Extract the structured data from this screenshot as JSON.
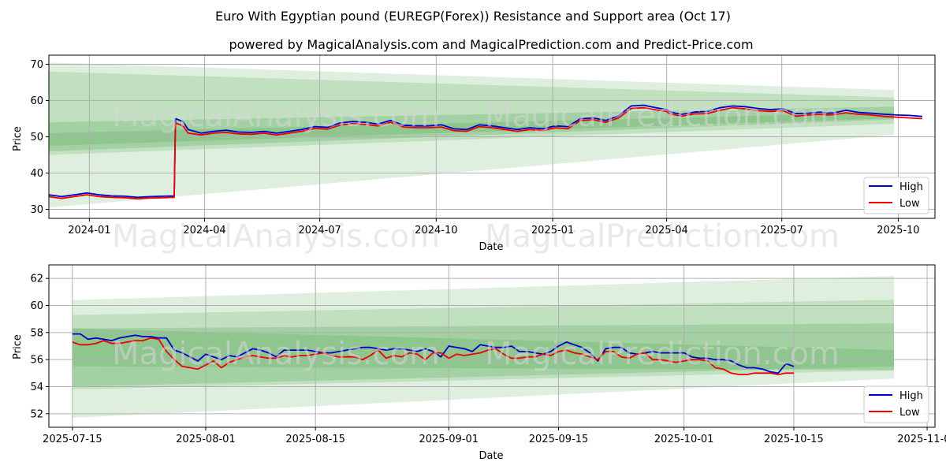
{
  "figure": {
    "title": "Euro With Egyptian pound (EUREGP(Forex)) Resistance and Support area (Oct 17)",
    "subtitle": "powered by MagicalAnalysis.com and MagicalPrediction.com and Predict-Price.com",
    "watermarks": [
      "MagicalAnalysis.com",
      "MagicalPrediction.com"
    ]
  },
  "chart_data": [
    {
      "type": "line",
      "xlabel": "Date",
      "ylabel": "Price",
      "xlim": [
        0,
        700
      ],
      "ylim": [
        27.5,
        72.5
      ],
      "x_unit": "days since 2023-11-30",
      "x_ticks": [
        {
          "v": 32,
          "label": "2024-01"
        },
        {
          "v": 123,
          "label": "2024-04"
        },
        {
          "v": 214,
          "label": "2024-07"
        },
        {
          "v": 306,
          "label": "2024-10"
        },
        {
          "v": 398,
          "label": "2025-01"
        },
        {
          "v": 488,
          "label": "2025-04"
        },
        {
          "v": 579,
          "label": "2025-07"
        },
        {
          "v": 671,
          "label": "2025-10"
        }
      ],
      "y_ticks": [
        30,
        40,
        50,
        60,
        70
      ],
      "grid": true,
      "legend": {
        "position": "lower-right",
        "entries": [
          "High",
          "Low"
        ]
      },
      "bands": [
        {
          "x": [
            0,
            700
          ],
          "upper": [
            70.5,
            62.5
          ],
          "lower": [
            30.5,
            51.5
          ],
          "opacity": 0.16
        },
        {
          "x": [
            0,
            700
          ],
          "upper": [
            68.0,
            60.5
          ],
          "lower": [
            45.0,
            54.0
          ],
          "opacity": 0.18
        },
        {
          "x": [
            0,
            700
          ],
          "upper": [
            54.0,
            58.5
          ],
          "lower": [
            46.0,
            55.2
          ],
          "opacity": 0.22
        },
        {
          "x": [
            0,
            700
          ],
          "upper": [
            51.0,
            57.0
          ],
          "lower": [
            47.5,
            55.5
          ],
          "opacity": 0.2
        }
      ],
      "series": [
        {
          "name": "High",
          "color": "#0000cc",
          "x": [
            0,
            10,
            20,
            30,
            40,
            50,
            60,
            70,
            80,
            90,
            99,
            100,
            106,
            110,
            120,
            130,
            140,
            150,
            160,
            170,
            180,
            190,
            200,
            210,
            220,
            230,
            240,
            250,
            260,
            270,
            280,
            290,
            300,
            310,
            320,
            330,
            340,
            350,
            360,
            370,
            380,
            390,
            400,
            410,
            420,
            430,
            440,
            450,
            460,
            470,
            480,
            488,
            490,
            495,
            500,
            505,
            510,
            520,
            530,
            540,
            550,
            560,
            570,
            575,
            580,
            590,
            600,
            610,
            615,
            620,
            630,
            640,
            650,
            660,
            670,
            680,
            690
          ],
          "values": [
            34.0,
            33.5,
            34.0,
            34.5,
            34.0,
            33.7,
            33.6,
            33.3,
            33.5,
            33.6,
            33.7,
            55.0,
            54.2,
            52.0,
            51.0,
            51.5,
            51.8,
            51.3,
            51.2,
            51.5,
            51.0,
            51.5,
            52.0,
            52.8,
            52.6,
            53.8,
            54.2,
            54.0,
            53.5,
            54.5,
            53.2,
            53.0,
            53.0,
            53.3,
            52.2,
            52.0,
            53.3,
            53.0,
            52.5,
            52.0,
            52.5,
            52.2,
            53.0,
            52.8,
            55.0,
            55.2,
            54.5,
            55.8,
            58.5,
            58.7,
            58.0,
            57.5,
            57.0,
            56.5,
            56.2,
            56.5,
            56.8,
            57.0,
            58.0,
            58.5,
            58.3,
            57.8,
            57.5,
            57.6,
            57.7,
            56.4,
            56.5,
            56.8,
            56.5,
            56.6,
            57.3,
            56.7,
            56.5,
            56.2,
            56.0,
            55.9,
            55.6
          ]
        },
        {
          "name": "Low",
          "color": "#ee0000",
          "x": [
            0,
            10,
            20,
            30,
            40,
            50,
            60,
            70,
            80,
            90,
            99,
            100,
            106,
            110,
            120,
            130,
            140,
            150,
            160,
            170,
            180,
            190,
            200,
            210,
            220,
            230,
            240,
            250,
            260,
            270,
            280,
            290,
            300,
            310,
            320,
            330,
            340,
            350,
            360,
            370,
            380,
            390,
            400,
            410,
            420,
            430,
            440,
            450,
            460,
            470,
            480,
            488,
            490,
            495,
            500,
            505,
            510,
            520,
            530,
            540,
            550,
            560,
            570,
            575,
            580,
            590,
            600,
            610,
            615,
            620,
            630,
            640,
            650,
            660,
            670,
            680,
            690
          ],
          "values": [
            33.5,
            33.0,
            33.5,
            34.0,
            33.5,
            33.3,
            33.2,
            32.9,
            33.1,
            33.2,
            33.3,
            53.8,
            53.0,
            51.0,
            50.5,
            51.0,
            51.2,
            50.8,
            50.7,
            51.0,
            50.5,
            51.0,
            51.5,
            52.3,
            52.1,
            53.2,
            53.6,
            53.4,
            53.0,
            54.0,
            52.7,
            52.5,
            52.5,
            52.7,
            51.7,
            51.5,
            52.8,
            52.5,
            52.0,
            51.5,
            52.0,
            51.7,
            52.5,
            52.2,
            54.5,
            54.7,
            54.0,
            55.2,
            57.8,
            58.0,
            57.4,
            57.0,
            56.4,
            56.0,
            55.7,
            56.0,
            56.3,
            56.4,
            57.3,
            58.0,
            57.7,
            57.2,
            57.0,
            57.1,
            57.2,
            55.7,
            56.0,
            56.2,
            56.0,
            56.1,
            56.6,
            56.2,
            56.0,
            55.6,
            55.4,
            55.2,
            55.0
          ]
        }
      ]
    },
    {
      "type": "line",
      "xlabel": "Date",
      "ylabel": "Price",
      "xlim": [
        -3,
        110
      ],
      "ylim": [
        51.0,
        63.0
      ],
      "x_unit": "days since 2025-07-15",
      "x_ticks": [
        {
          "v": 0,
          "label": "2025-07-15"
        },
        {
          "v": 17,
          "label": "2025-08-01"
        },
        {
          "v": 31,
          "label": "2025-08-15"
        },
        {
          "v": 48,
          "label": "2025-09-01"
        },
        {
          "v": 62,
          "label": "2025-09-15"
        },
        {
          "v": 78,
          "label": "2025-10-01"
        },
        {
          "v": 92,
          "label": "2025-10-15"
        },
        {
          "v": 109,
          "label": "2025-11-01"
        }
      ],
      "y_ticks": [
        52,
        54,
        56,
        58,
        60,
        62
      ],
      "grid": true,
      "legend": {
        "position": "lower-right",
        "entries": [
          "High",
          "Low"
        ]
      },
      "bands": [
        {
          "x": [
            0,
            112
          ],
          "upper": [
            60.4,
            62.3
          ],
          "lower": [
            51.7,
            54.8
          ],
          "opacity": 0.16
        },
        {
          "x": [
            0,
            112
          ],
          "upper": [
            59.3,
            60.5
          ],
          "lower": [
            53.8,
            55.3
          ],
          "opacity": 0.18
        },
        {
          "x": [
            0,
            112
          ],
          "upper": [
            58.3,
            58.7
          ],
          "lower": [
            54.0,
            55.6
          ],
          "opacity": 0.22
        },
        {
          "x": [
            0,
            112
          ],
          "upper": [
            58.3,
            56.6
          ],
          "lower": [
            55.5,
            55.2
          ],
          "opacity": 0.2
        }
      ],
      "series": [
        {
          "name": "High",
          "color": "#0000cc",
          "x": [
            0,
            1,
            2,
            3,
            4,
            5,
            6,
            7,
            8,
            9,
            10,
            11,
            12,
            13,
            14,
            16,
            17,
            18,
            19,
            20,
            21,
            22,
            23,
            24,
            25,
            26,
            27,
            28,
            29,
            30,
            31,
            32,
            33,
            34,
            35,
            36,
            37,
            38,
            39,
            40,
            41,
            42,
            43,
            44,
            45,
            46,
            47,
            48,
            49,
            50,
            51,
            52,
            53,
            54,
            55,
            56,
            57,
            58,
            59,
            60,
            61,
            62,
            63,
            64,
            65,
            66,
            67,
            68,
            69,
            70,
            71,
            72,
            73,
            74,
            75,
            76,
            77,
            78,
            79,
            80,
            81,
            82,
            83,
            84,
            85,
            86,
            87,
            88,
            89,
            90,
            91,
            92
          ],
          "values": [
            57.9,
            57.9,
            57.5,
            57.6,
            57.5,
            57.4,
            57.6,
            57.7,
            57.8,
            57.7,
            57.7,
            57.6,
            57.6,
            56.7,
            56.5,
            55.9,
            56.4,
            56.2,
            56.0,
            56.3,
            56.2,
            56.5,
            56.8,
            56.7,
            56.5,
            56.2,
            56.7,
            56.7,
            56.7,
            56.7,
            56.6,
            56.5,
            56.5,
            56.6,
            56.7,
            56.8,
            56.9,
            56.9,
            56.8,
            56.7,
            56.8,
            56.8,
            56.7,
            56.6,
            56.8,
            56.6,
            56.2,
            57.0,
            56.9,
            56.8,
            56.6,
            57.1,
            57.0,
            56.9,
            56.9,
            57.0,
            56.6,
            56.6,
            56.5,
            56.4,
            56.6,
            57.0,
            57.3,
            57.1,
            56.9,
            56.5,
            55.9,
            56.8,
            56.9,
            56.9,
            56.5,
            56.4,
            56.5,
            56.6,
            56.5,
            56.5,
            56.5,
            56.5,
            56.2,
            56.1,
            56.1,
            56.0,
            56.0,
            55.9,
            55.6,
            55.4,
            55.4,
            55.3,
            55.1,
            55.0,
            55.7,
            55.5
          ]
        },
        {
          "name": "Low",
          "color": "#ee0000",
          "x": [
            0,
            1,
            2,
            3,
            4,
            5,
            6,
            7,
            8,
            9,
            10,
            11,
            12,
            13,
            14,
            16,
            17,
            18,
            19,
            20,
            21,
            22,
            23,
            24,
            25,
            26,
            27,
            28,
            29,
            30,
            31,
            32,
            33,
            34,
            35,
            36,
            37,
            38,
            39,
            40,
            41,
            42,
            43,
            44,
            45,
            46,
            47,
            48,
            49,
            50,
            51,
            52,
            53,
            54,
            55,
            56,
            57,
            58,
            59,
            60,
            61,
            62,
            63,
            64,
            65,
            66,
            67,
            68,
            69,
            70,
            71,
            72,
            73,
            74,
            75,
            76,
            77,
            78,
            79,
            80,
            81,
            82,
            83,
            84,
            85,
            86,
            87,
            88,
            89,
            90,
            91,
            92
          ],
          "values": [
            57.3,
            57.1,
            57.1,
            57.2,
            57.4,
            57.2,
            57.2,
            57.3,
            57.4,
            57.4,
            57.6,
            57.5,
            56.6,
            56.0,
            55.5,
            55.3,
            55.6,
            55.9,
            55.4,
            55.8,
            56.0,
            56.2,
            56.3,
            56.2,
            56.1,
            56.1,
            56.3,
            56.2,
            56.3,
            56.3,
            56.4,
            56.5,
            56.3,
            56.2,
            56.2,
            56.2,
            56.0,
            56.3,
            56.7,
            56.1,
            56.3,
            56.2,
            56.5,
            56.4,
            56.0,
            56.5,
            56.5,
            56.1,
            56.4,
            56.3,
            56.4,
            56.5,
            56.7,
            56.8,
            56.4,
            56.1,
            56.1,
            56.2,
            56.2,
            56.4,
            56.3,
            56.6,
            56.7,
            56.5,
            56.4,
            56.2,
            56.0,
            56.6,
            56.6,
            56.2,
            56.1,
            56.4,
            56.5,
            56.0,
            56.0,
            55.9,
            55.8,
            55.9,
            56.0,
            56.0,
            55.9,
            55.4,
            55.3,
            55.0,
            54.9,
            54.9,
            55.0,
            55.0,
            55.0,
            54.9,
            55.0,
            55.0
          ]
        }
      ]
    }
  ]
}
